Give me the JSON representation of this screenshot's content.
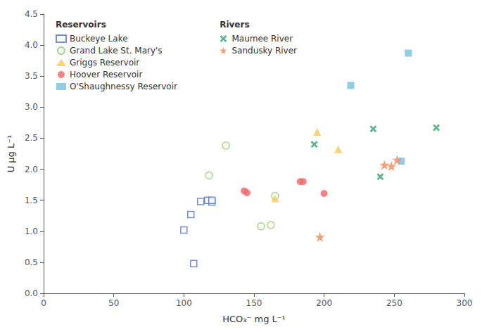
{
  "chart_data": {
    "type": "scatter",
    "xlabel": "HCO₃⁻ mg L⁻¹",
    "ylabel": "U µg L⁻¹",
    "series": [
      {
        "name": "Buckeye Lake",
        "group": "Reservoirs",
        "marker": "square_open",
        "x": [
          100,
          105,
          112,
          117,
          120,
          120,
          107
        ],
        "values": [
          1.02,
          1.27,
          1.48,
          1.5,
          1.47,
          1.5,
          0.48
        ]
      },
      {
        "name": "Grand Lake St. Mary's",
        "group": "Reservoirs",
        "marker": "circle_open",
        "x": [
          118,
          130,
          155,
          162,
          165
        ],
        "values": [
          1.9,
          2.38,
          1.08,
          1.1,
          1.57
        ]
      },
      {
        "name": "Griggs Reservoir",
        "group": "Reservoirs",
        "marker": "triangle",
        "x": [
          165,
          195,
          210
        ],
        "values": [
          1.53,
          2.6,
          2.32
        ]
      },
      {
        "name": "Hoover Reservoir",
        "group": "Reservoirs",
        "marker": "circle",
        "x": [
          143,
          145,
          183,
          185,
          200
        ],
        "values": [
          1.65,
          1.62,
          1.8,
          1.8,
          1.61
        ]
      },
      {
        "name": "O'Shaughnessy Reservoir",
        "group": "Reservoirs",
        "marker": "square",
        "x": [
          219,
          255,
          260
        ],
        "values": [
          3.35,
          2.13,
          3.87
        ]
      },
      {
        "name": "Maumee River",
        "group": "Rivers",
        "marker": "x",
        "x": [
          193,
          235,
          240,
          280
        ],
        "values": [
          2.4,
          2.65,
          1.88,
          2.67
        ]
      },
      {
        "name": "Sandusky River",
        "group": "Rivers",
        "marker": "star",
        "x": [
          197,
          243,
          248,
          252
        ],
        "values": [
          0.91,
          2.07,
          2.05,
          2.15
        ]
      }
    ],
    "xlim": [
      0,
      300
    ],
    "ylim": [
      0,
      4.5
    ],
    "xticks": [
      0,
      50,
      100,
      150,
      200,
      250,
      300
    ],
    "yticks": [
      {
        "value": 0,
        "label": "0.0"
      },
      0.5,
      {
        "value": 1,
        "label": "1.0"
      },
      1.5,
      {
        "value": 2,
        "label": "2.0"
      },
      2.5,
      {
        "value": 3,
        "label": "3.0"
      },
      3.5,
      {
        "value": 4,
        "label": "4.0"
      },
      4.5
    ],
    "grid": false,
    "legend": "upper left"
  }
}
